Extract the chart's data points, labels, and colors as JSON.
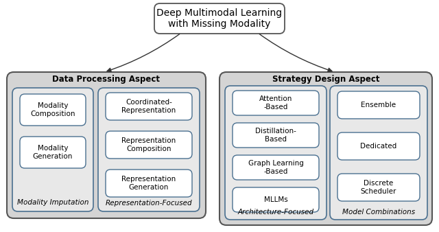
{
  "title": "Deep Multimodal Learning\nwith Missing Modality",
  "fig_bg": "#ffffff",
  "section_bg": "#d4d4d4",
  "section_edge": "#555555",
  "subbox_bg": "#e8e8e8",
  "subbox_edge": "#4a7090",
  "item_bg": "#ffffff",
  "item_edge": "#4a7090",
  "left_section_title": "Data Processing Aspect",
  "right_section_title": "Strategy Design Aspect",
  "left_col1_items": [
    "Modality\nComposition",
    "Modality\nGeneration"
  ],
  "left_col1_label": "Modality Imputation",
  "left_col2_items": [
    "Coordinated-\nRepresentation",
    "Representation\nComposition",
    "Representation\nGeneration"
  ],
  "left_col2_label": "Representation-Focused",
  "right_col1_items": [
    "Attention\n-Based",
    "Distillation-\nBased",
    "Graph Learning\n-Based",
    "MLLMs"
  ],
  "right_col1_label": "Architecture-Focused",
  "right_col2_items": [
    "Ensemble",
    "Dedicated",
    "Discrete\nScheduler"
  ],
  "right_col2_label": "Model Combinations",
  "font_size_title": 10,
  "font_size_section": 8.5,
  "font_size_item": 7.5,
  "font_size_label": 7.5
}
